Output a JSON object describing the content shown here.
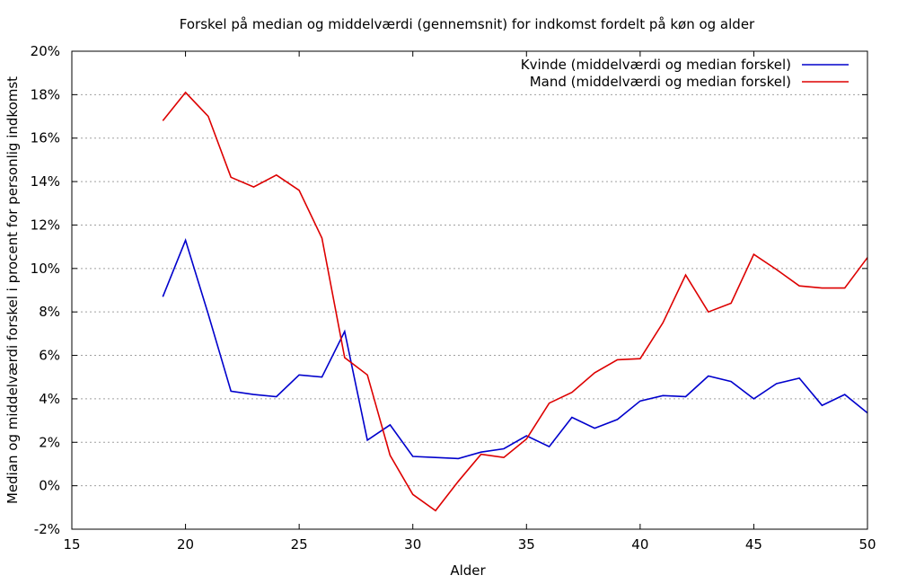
{
  "chart_data": {
    "type": "line",
    "title": "Forskel på median og middelværdi (gennemsnit) for indkomst fordelt på køn og alder",
    "xlabel": "Alder",
    "ylabel": "Median og middelværdi forskel i procent for personlig indkomst",
    "xlim": [
      15,
      50
    ],
    "ylim": [
      -2,
      20
    ],
    "x_ticks": [
      15,
      20,
      25,
      30,
      35,
      40,
      45,
      50
    ],
    "y_ticks": [
      -2,
      0,
      2,
      4,
      6,
      8,
      10,
      12,
      14,
      16,
      18,
      20
    ],
    "y_tick_labels": [
      "-2%",
      "0%",
      "2%",
      "4%",
      "6%",
      "8%",
      "10%",
      "12%",
      "14%",
      "16%",
      "18%",
      "20%"
    ],
    "grid": "horizontal dashed",
    "legend_position": "top-right",
    "x": [
      19,
      20,
      21,
      22,
      23,
      24,
      25,
      26,
      27,
      28,
      29,
      30,
      31,
      32,
      33,
      34,
      35,
      36,
      37,
      38,
      39,
      40,
      41,
      42,
      43,
      44,
      45,
      46,
      47,
      48,
      49,
      50
    ],
    "series": [
      {
        "name": "Kvinde (middelværdi og median forskel)",
        "color": "#0000cc",
        "values": [
          8.7,
          11.3,
          7.9,
          4.35,
          4.2,
          4.1,
          5.1,
          5.0,
          7.1,
          2.1,
          2.8,
          1.35,
          1.3,
          1.25,
          1.55,
          1.7,
          2.3,
          1.8,
          3.15,
          2.65,
          3.05,
          3.9,
          4.15,
          4.1,
          5.05,
          4.8,
          4.0,
          4.7,
          4.95,
          3.7,
          4.2,
          3.35
        ]
      },
      {
        "name": "Mand (middelværdi og median forskel)",
        "color": "#dd0000",
        "values": [
          16.8,
          18.1,
          17.0,
          14.2,
          13.75,
          14.3,
          13.6,
          11.4,
          5.9,
          5.1,
          1.4,
          -0.4,
          -1.15,
          0.2,
          1.45,
          1.3,
          2.15,
          3.8,
          4.3,
          5.2,
          5.8,
          5.85,
          7.5,
          9.7,
          8.0,
          8.4,
          10.65,
          9.95,
          9.2,
          9.1,
          9.1,
          10.5
        ]
      }
    ]
  }
}
